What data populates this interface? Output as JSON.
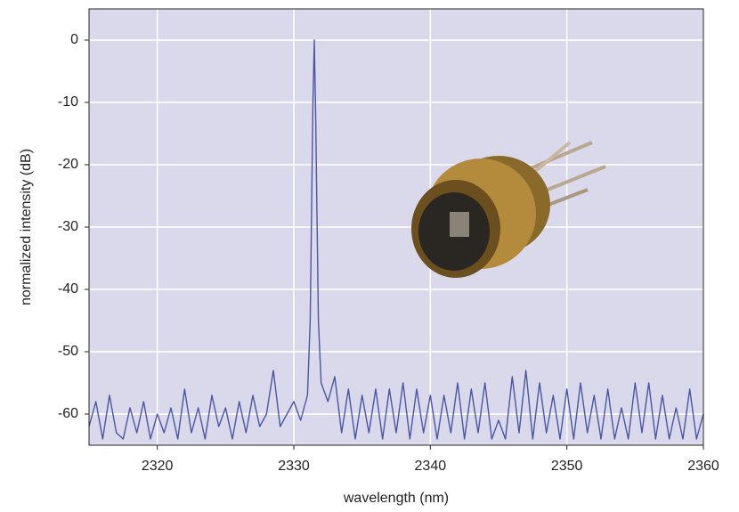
{
  "chart_data": {
    "type": "line",
    "xlabel": "wavelength (nm)",
    "ylabel": "normalized intensity (dB)",
    "xlim": [
      2315,
      2360
    ],
    "ylim": [
      -65,
      5
    ],
    "xticks": [
      2320,
      2330,
      2340,
      2350,
      2360
    ],
    "yticks": [
      0,
      -10,
      -20,
      -30,
      -40,
      -50,
      -60
    ],
    "grid": true,
    "series": [
      {
        "color": "#4b56a3",
        "x": [
          2315,
          2315.5,
          2316,
          2316.5,
          2317,
          2317.5,
          2318,
          2318.5,
          2319,
          2319.5,
          2320,
          2320.5,
          2321,
          2321.5,
          2322,
          2322.5,
          2323,
          2323.5,
          2324,
          2324.5,
          2325,
          2325.5,
          2326,
          2326.5,
          2327,
          2327.5,
          2328,
          2328.5,
          2329,
          2329.5,
          2330,
          2330.5,
          2331,
          2331.2,
          2331.4,
          2331.5,
          2331.6,
          2331.8,
          2332,
          2332.5,
          2333,
          2333.5,
          2334,
          2334.5,
          2335,
          2335.5,
          2336,
          2336.5,
          2337,
          2337.5,
          2338,
          2338.5,
          2339,
          2339.5,
          2340,
          2340.5,
          2341,
          2341.5,
          2342,
          2342.5,
          2343,
          2343.5,
          2344,
          2344.5,
          2345,
          2345.5,
          2346,
          2346.5,
          2347,
          2347.5,
          2348,
          2348.5,
          2349,
          2349.5,
          2350,
          2350.5,
          2351,
          2351.5,
          2352,
          2352.5,
          2353,
          2353.5,
          2354,
          2354.5,
          2355,
          2355.5,
          2356,
          2356.5,
          2357,
          2357.5,
          2358,
          2358.5,
          2359,
          2359.5,
          2360
        ],
        "values": [
          -62,
          -58,
          -64,
          -57,
          -63,
          -64,
          -59,
          -63,
          -58,
          -64,
          -60,
          -63,
          -59,
          -64,
          -56,
          -63,
          -59,
          -64,
          -57,
          -62,
          -59,
          -64,
          -58,
          -63,
          -57,
          -62,
          -60,
          -53,
          -62,
          -60,
          -58,
          -61,
          -57,
          -45,
          -10,
          0,
          -12,
          -45,
          -55,
          -58,
          -54,
          -63,
          -56,
          -64,
          -57,
          -63,
          -56,
          -64,
          -56,
          -63,
          -55,
          -64,
          -56,
          -63,
          -57,
          -64,
          -57,
          -63,
          -55,
          -64,
          -56,
          -63,
          -55,
          -64,
          -61,
          -64,
          -54,
          -63,
          -53,
          -64,
          -55,
          -63,
          -57,
          -64,
          -56,
          -64,
          -55,
          -63,
          -57,
          -64,
          -56,
          -64,
          -59,
          -64,
          -55,
          -63,
          -55,
          -64,
          -57,
          -64,
          -59,
          -64,
          -56,
          -64,
          -60
        ]
      }
    ]
  }
}
